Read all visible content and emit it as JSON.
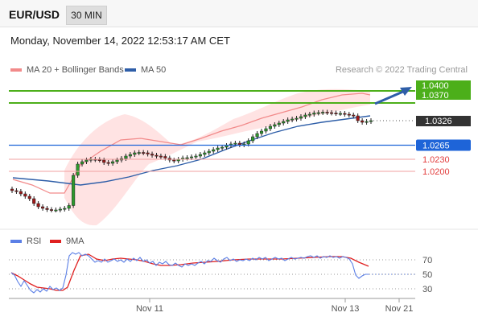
{
  "header": {
    "pair": "EUR/USD",
    "timeframe": "30 MIN"
  },
  "date_text": "Monday, November 14, 2022 12:53:17 AM CET",
  "credit": "Research © 2022 Trading Central",
  "legend": [
    {
      "label": "MA 20 + Bollinger Bands",
      "color": "#f28a8a"
    },
    {
      "label": "MA 50",
      "color": "#2e5ea8"
    }
  ],
  "rsi_legend": [
    {
      "label": "RSI",
      "color": "#5b7fe6"
    },
    {
      "label": "9MA",
      "color": "#e02020"
    }
  ],
  "chart_data": {
    "type": "candlestick",
    "price_ylim": [
      1.006,
      1.043
    ],
    "levels": [
      {
        "label": "1.0400",
        "value": 1.04,
        "color": "#4caf1a",
        "style": "green-box"
      },
      {
        "label": "1.0370",
        "value": 1.037,
        "color": "#4caf1a",
        "style": "green-box"
      },
      {
        "label": "1.0326",
        "value": 1.0326,
        "color": "#333333",
        "style": "dark-box"
      },
      {
        "label": "1.0265",
        "value": 1.0265,
        "color": "#1e64d8",
        "style": "blue-box"
      },
      {
        "label": "1.0230",
        "value": 1.023,
        "color": "#e23b3b",
        "style": "red-text"
      },
      {
        "label": "1.0200",
        "value": 1.02,
        "color": "#e23b3b",
        "style": "red-text"
      }
    ],
    "x_labels": [
      "Nov 11",
      "Nov 13",
      "Nov 21"
    ],
    "rsi_ticks": [
      70,
      50,
      30
    ]
  }
}
